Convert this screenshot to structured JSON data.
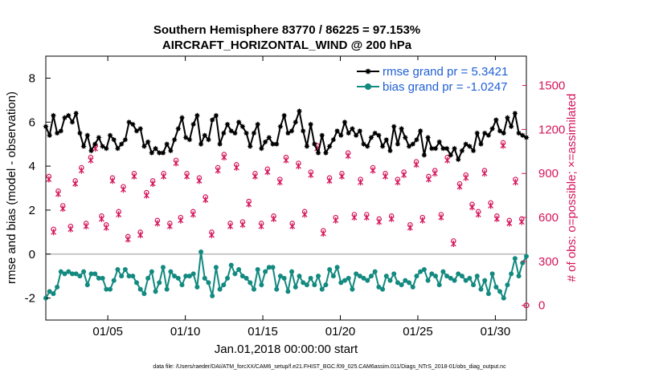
{
  "chart_data": {
    "type": "line",
    "title_line1": "Southern Hemisphere 83770 / 86225 = 97.153%",
    "title_line2": "AIRCRAFT_HORIZONTAL_WIND @ 200 hPa",
    "ylabel": "rmse and bias (model - observation)",
    "ylabel_right": "# of obs: o=possible; ×=assimilated",
    "xlabel": "Jan.01,2018 00:00:00 start",
    "footer": "data file: /Users/raeder/DAI/ATM_forcXX/CAM6_setup/f.e21.FHIST_BGC.f09_025.CAM6assim.011/Diags_NTrS_2018-01/obs_diag_output.nc",
    "xlim": [
      1,
      32
    ],
    "ylim": [
      -3,
      9
    ],
    "ylim_right": [
      -100,
      1700
    ],
    "xticks": [
      5,
      10,
      15,
      20,
      25,
      30
    ],
    "xtick_labels": [
      "01/05",
      "01/10",
      "01/15",
      "01/20",
      "01/25",
      "01/30"
    ],
    "yticks": [
      -2,
      0,
      2,
      4,
      6,
      8
    ],
    "ytick_labels": [
      "-2",
      "0",
      "2",
      "4",
      "6",
      "8"
    ],
    "yticks_right": [
      0,
      300,
      600,
      900,
      1200,
      1500
    ],
    "ytick_labels_right": [
      "0",
      "300",
      "600",
      "900",
      "1200",
      "1500"
    ],
    "legend_placement": "top-right",
    "colors": {
      "rmse": "#000000",
      "bias": "#138a80",
      "obs": "#d4145a",
      "zero": "#b8b8b8",
      "legend_text": "#1f5fd6"
    },
    "series": [
      {
        "name": "rmse grand pr = 5.3421",
        "label": "rmse grand pr = 5.3421",
        "role": "rmse",
        "values": [
          5.8,
          5.4,
          6.3,
          5.5,
          5.6,
          6.2,
          6.3,
          6.0,
          6.4,
          5.5,
          4.9,
          5.4,
          4.7,
          5.0,
          5.3,
          4.9,
          4.8,
          5.4,
          5.2,
          4.8,
          5.0,
          5.2,
          6.0,
          5.9,
          5.6,
          5.7,
          4.9,
          5.1,
          4.6,
          4.8,
          4.6,
          4.6,
          5.0,
          4.7,
          5.2,
          5.7,
          6.2,
          5.3,
          5.2,
          5.9,
          6.3,
          5.0,
          5.4,
          5.2,
          6.1,
          6.3,
          5.0,
          5.5,
          5.9,
          5.6,
          5.5,
          6.0,
          5.8,
          5.5,
          4.9,
          5.5,
          5.9,
          4.8,
          5.1,
          5.3,
          5.0,
          5.0,
          5.8,
          6.3,
          5.5,
          5.6,
          6.0,
          6.5,
          5.6,
          4.9,
          5.9,
          5.0,
          4.6,
          5.4,
          4.6,
          4.9,
          5.2,
          5.6,
          5.4,
          6.0,
          5.5,
          5.7,
          5.4,
          5.6,
          5.0,
          4.9,
          5.3,
          5.5,
          5.4,
          4.9,
          5.2,
          4.7,
          5.8,
          5.0,
          5.7,
          5.3,
          4.9,
          5.0,
          5.2,
          5.6,
          4.5,
          5.3,
          4.8,
          4.8,
          5.1,
          4.8,
          4.8,
          4.5,
          4.8,
          4.3,
          4.7,
          5.0,
          4.9,
          4.7,
          5.5,
          5.0,
          5.5,
          5.4,
          5.7,
          6.1,
          5.6,
          5.5,
          6.2,
          5.8,
          6.4,
          5.5,
          5.4,
          5.3
        ]
      },
      {
        "name": "bias grand pr = -1.0247",
        "label": "bias grand pr = -1.0247",
        "role": "bias",
        "values": [
          -2.0,
          -1.7,
          -1.8,
          -1.5,
          -0.8,
          -0.9,
          -0.8,
          -0.9,
          -0.9,
          -1.0,
          -0.8,
          -1.4,
          -0.9,
          -0.9,
          -1.1,
          -1.1,
          -1.6,
          -1.6,
          -1.2,
          -0.7,
          -1.0,
          -0.7,
          -1.0,
          -1.0,
          -1.3,
          -1.6,
          -1.8,
          -1.1,
          -0.8,
          -1.7,
          -1.3,
          -0.6,
          -1.6,
          -0.8,
          -1.0,
          -1.1,
          -1.4,
          -1.0,
          -1.0,
          -0.9,
          -1.5,
          0.1,
          -1.1,
          -1.3,
          -1.9,
          -0.6,
          -1.6,
          -1.4,
          -1.1,
          -0.5,
          -0.9,
          -0.7,
          -1.0,
          -1.1,
          -1.3,
          -1.6,
          -0.7,
          -1.4,
          -0.8,
          -0.6,
          -0.6,
          -1.6,
          -1.0,
          -1.1,
          -1.7,
          -0.8,
          -1.5,
          -1.0,
          -1.3,
          -1.4,
          -1.1,
          -1.4,
          -1.0,
          -1.6,
          -1.4,
          -0.7,
          -1.0,
          -0.6,
          -1.3,
          -1.2,
          -1.1,
          -1.6,
          -0.9,
          -1.0,
          -1.1,
          -1.2,
          -1.0,
          -0.8,
          -1.5,
          -1.6,
          -1.0,
          -1.2,
          -0.9,
          -1.3,
          -1.4,
          -1.2,
          -1.3,
          -1.5,
          -1.0,
          -0.8,
          -0.7,
          -1.2,
          -0.9,
          -1.0,
          -1.4,
          -0.8,
          -1.0,
          -1.1,
          -1.2,
          -0.9,
          -1.0,
          -1.2,
          -1.1,
          -1.4,
          -1.0,
          -1.6,
          -1.2,
          -1.8,
          -0.9,
          -1.5,
          -1.7,
          -2.0,
          -1.4,
          -0.9,
          -0.2,
          -1.0,
          -0.4,
          -0.1
        ]
      }
    ],
    "obs_possible": {
      "name": "o=possible",
      "x": [
        1.2,
        1.5,
        1.8,
        2.1,
        2.6,
        2.9,
        3.3,
        3.6,
        3.9,
        4.2,
        4.6,
        4.9,
        5.3,
        5.7,
        6.0,
        6.3,
        6.7,
        7.1,
        7.5,
        7.9,
        8.2,
        8.6,
        9.0,
        9.4,
        9.7,
        10.1,
        10.5,
        10.9,
        11.3,
        11.7,
        12.1,
        12.5,
        12.9,
        13.3,
        13.7,
        14.1,
        14.5,
        14.9,
        15.3,
        15.7,
        16.1,
        16.5,
        16.9,
        17.3,
        17.7,
        18.1,
        18.5,
        18.9,
        19.3,
        19.7,
        20.1,
        20.5,
        20.9,
        21.3,
        21.7,
        22.1,
        22.5,
        22.9,
        23.3,
        23.7,
        24.1,
        24.5,
        24.9,
        25.3,
        25.7,
        26.1,
        26.5,
        26.9,
        27.3,
        27.7,
        28.1,
        28.5,
        28.9,
        29.3,
        29.7,
        30.1,
        30.5,
        30.9,
        31.3,
        31.7
      ],
      "values": [
        880,
        520,
        780,
        680,
        540,
        850,
        940,
        560,
        1010,
        1090,
        610,
        550,
        870,
        640,
        810,
        470,
        900,
        500,
        770,
        850,
        580,
        900,
        560,
        990,
        600,
        900,
        640,
        870,
        740,
        500,
        940,
        1030,
        560,
        960,
        570,
        710,
        900,
        560,
        930,
        610,
        860,
        1010,
        560,
        970,
        640,
        910,
        1090,
        510,
        870,
        600,
        900,
        1040,
        620,
        860,
        620,
        940,
        590,
        900,
        610,
        860,
        910,
        550,
        980,
        600,
        880,
        920,
        620,
        1010,
        440,
        830,
        890,
        690,
        640,
        920,
        700,
        610,
        1110,
        580,
        860,
        590
      ]
    },
    "obs_assimilated": {
      "name": "×=assimilated",
      "x": [
        1.2,
        1.5,
        1.8,
        2.1,
        2.6,
        2.9,
        3.3,
        3.6,
        3.9,
        4.2,
        4.6,
        4.9,
        5.3,
        5.7,
        6.0,
        6.3,
        6.7,
        7.1,
        7.5,
        7.9,
        8.2,
        8.6,
        9.0,
        9.4,
        9.7,
        10.1,
        10.5,
        10.9,
        11.3,
        11.7,
        12.1,
        12.5,
        12.9,
        13.3,
        13.7,
        14.1,
        14.5,
        14.9,
        15.3,
        15.7,
        16.1,
        16.5,
        16.9,
        17.3,
        17.7,
        18.1,
        18.5,
        18.9,
        19.3,
        19.7,
        20.1,
        20.5,
        20.9,
        21.3,
        21.7,
        22.1,
        22.5,
        22.9,
        23.3,
        23.7,
        24.1,
        24.5,
        24.9,
        25.3,
        25.7,
        26.1,
        26.5,
        26.9,
        27.3,
        27.7,
        28.1,
        28.5,
        28.9,
        29.3,
        29.7,
        30.1,
        30.5,
        30.9,
        31.3,
        31.7
      ],
      "values": [
        860,
        500,
        760,
        660,
        520,
        830,
        920,
        540,
        990,
        1070,
        590,
        530,
        850,
        620,
        790,
        450,
        880,
        480,
        750,
        830,
        560,
        880,
        540,
        970,
        580,
        880,
        620,
        850,
        720,
        480,
        920,
        1010,
        540,
        940,
        550,
        690,
        880,
        540,
        910,
        590,
        840,
        990,
        540,
        950,
        620,
        890,
        1070,
        490,
        850,
        580,
        880,
        1020,
        600,
        840,
        600,
        920,
        570,
        880,
        590,
        840,
        890,
        530,
        960,
        580,
        860,
        900,
        600,
        990,
        420,
        810,
        870,
        670,
        620,
        900,
        680,
        590,
        1090,
        560,
        840,
        570
      ]
    }
  }
}
